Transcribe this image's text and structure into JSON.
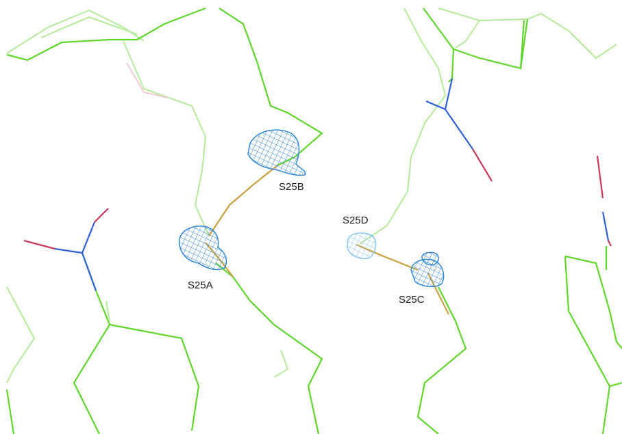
{
  "labels": {
    "s25a": "S25A",
    "s25b": "S25B",
    "s25c": "S25C",
    "s25d": "S25D"
  },
  "colors": {
    "background": "#ffffff",
    "backbone": "#5ed62a",
    "backbone_faded": "#b4eb9a",
    "nitrogen": "#2e5fd8",
    "oxygen": "#c9385a",
    "sulfur_bond": "#c9a040",
    "density_mesh": "#2f86d6",
    "density_mesh_faded": "#8cc8ef",
    "label_text": "#1a1a1a"
  },
  "structure": {
    "molecule_display": "stick model",
    "density_display": "mesh",
    "sites": [
      "S25A",
      "S25B",
      "S25C",
      "S25D"
    ]
  }
}
